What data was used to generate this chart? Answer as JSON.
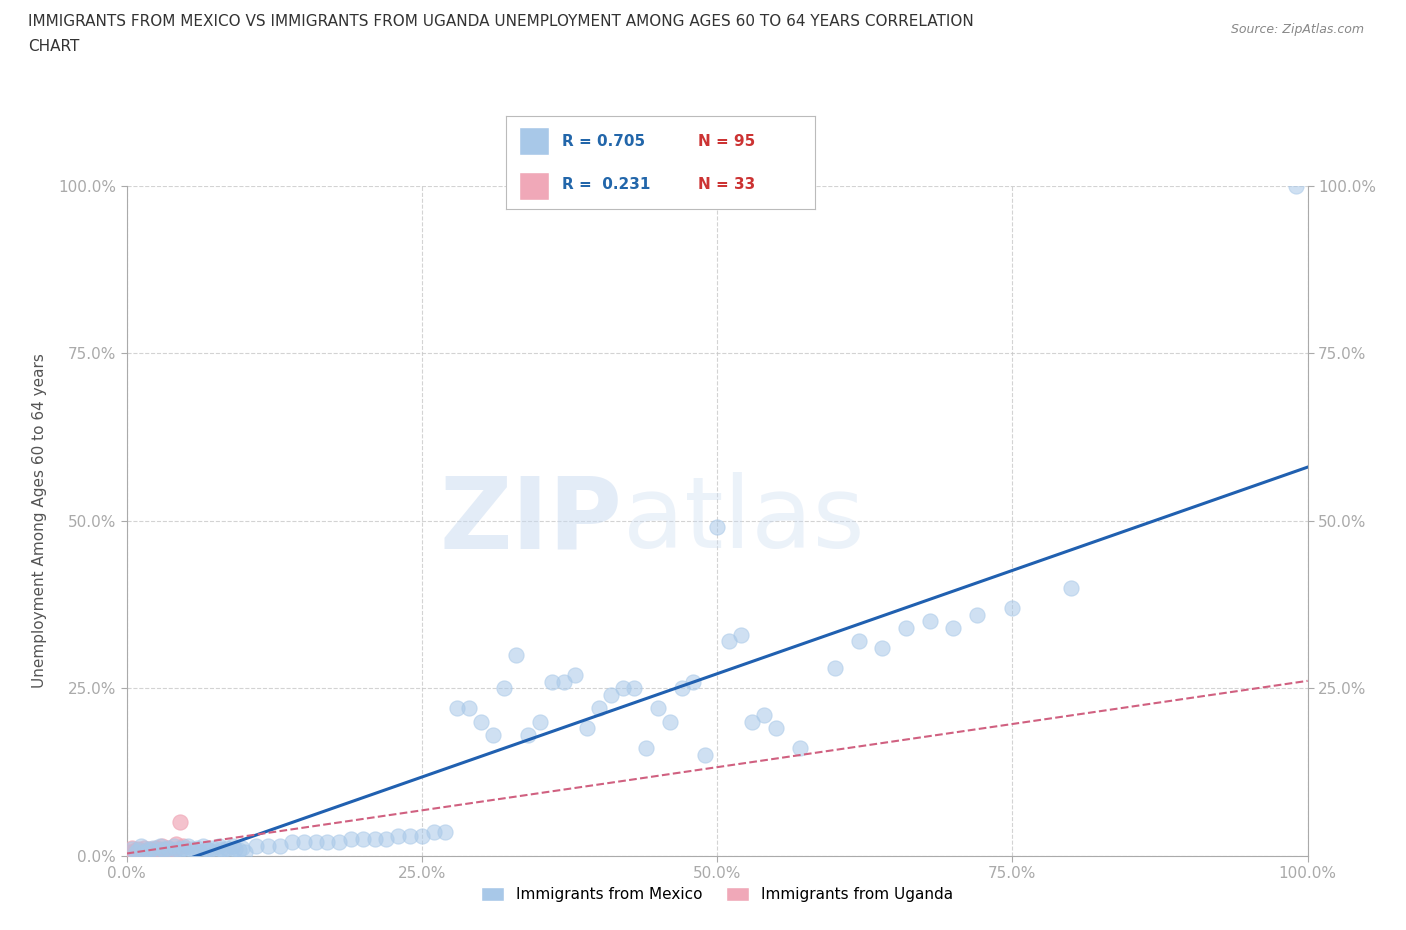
{
  "title_line1": "IMMIGRANTS FROM MEXICO VS IMMIGRANTS FROM UGANDA UNEMPLOYMENT AMONG AGES 60 TO 64 YEARS CORRELATION",
  "title_line2": "CHART",
  "source_text": "Source: ZipAtlas.com",
  "ylabel": "Unemployment Among Ages 60 to 64 years",
  "xlim": [
    0.0,
    1.0
  ],
  "ylim": [
    0.0,
    1.0
  ],
  "xticks": [
    0.0,
    0.25,
    0.5,
    0.75,
    1.0
  ],
  "yticks": [
    0.0,
    0.25,
    0.5,
    0.75,
    1.0
  ],
  "xticklabels": [
    "0.0%",
    "25.0%",
    "50.0%",
    "75.0%",
    "100.0%"
  ],
  "yticklabels": [
    "0.0%",
    "25.0%",
    "50.0%",
    "75.0%",
    "100.0%"
  ],
  "right_yticklabels": [
    "25.0%",
    "50.0%",
    "75.0%",
    "100.0%"
  ],
  "right_yticks": [
    0.25,
    0.5,
    0.75,
    1.0
  ],
  "mexico_R": 0.705,
  "mexico_N": 95,
  "uganda_R": 0.231,
  "uganda_N": 33,
  "mexico_color": "#a8c8e8",
  "uganda_color": "#f0a8b8",
  "mexico_line_color": "#2060b0",
  "uganda_line_color": "#d06080",
  "legend_mexico_label": "Immigrants from Mexico",
  "legend_uganda_label": "Immigrants from Uganda",
  "watermark": "ZIPAtlas",
  "background_color": "#ffffff",
  "grid_color": "#c8c8c8",
  "title_color": "#333333",
  "axis_label_color": "#555555",
  "tick_color": "#4488cc",
  "mexico_x": [
    0.005,
    0.008,
    0.01,
    0.012,
    0.015,
    0.018,
    0.02,
    0.022,
    0.025,
    0.028,
    0.03,
    0.032,
    0.035,
    0.038,
    0.04,
    0.042,
    0.045,
    0.048,
    0.05,
    0.052,
    0.055,
    0.058,
    0.06,
    0.062,
    0.065,
    0.068,
    0.07,
    0.072,
    0.075,
    0.078,
    0.08,
    0.082,
    0.085,
    0.088,
    0.09,
    0.092,
    0.095,
    0.098,
    0.1,
    0.11,
    0.12,
    0.13,
    0.14,
    0.15,
    0.16,
    0.17,
    0.18,
    0.19,
    0.2,
    0.21,
    0.22,
    0.23,
    0.24,
    0.25,
    0.26,
    0.27,
    0.28,
    0.29,
    0.3,
    0.31,
    0.32,
    0.33,
    0.34,
    0.35,
    0.36,
    0.37,
    0.38,
    0.39,
    0.4,
    0.41,
    0.42,
    0.43,
    0.44,
    0.45,
    0.46,
    0.47,
    0.48,
    0.49,
    0.5,
    0.51,
    0.52,
    0.53,
    0.54,
    0.55,
    0.57,
    0.6,
    0.62,
    0.64,
    0.66,
    0.68,
    0.7,
    0.72,
    0.75,
    0.8,
    0.99
  ],
  "mexico_y": [
    0.01,
    0.005,
    0.008,
    0.015,
    0.005,
    0.01,
    0.008,
    0.012,
    0.005,
    0.015,
    0.01,
    0.008,
    0.012,
    0.005,
    0.015,
    0.01,
    0.008,
    0.012,
    0.005,
    0.015,
    0.01,
    0.008,
    0.012,
    0.005,
    0.015,
    0.01,
    0.008,
    0.012,
    0.005,
    0.015,
    0.01,
    0.008,
    0.012,
    0.005,
    0.015,
    0.01,
    0.008,
    0.012,
    0.005,
    0.015,
    0.015,
    0.015,
    0.02,
    0.02,
    0.02,
    0.02,
    0.02,
    0.025,
    0.025,
    0.025,
    0.025,
    0.03,
    0.03,
    0.03,
    0.035,
    0.035,
    0.22,
    0.22,
    0.2,
    0.18,
    0.25,
    0.3,
    0.18,
    0.2,
    0.26,
    0.26,
    0.27,
    0.19,
    0.22,
    0.24,
    0.25,
    0.25,
    0.16,
    0.22,
    0.2,
    0.25,
    0.26,
    0.15,
    0.49,
    0.32,
    0.33,
    0.2,
    0.21,
    0.19,
    0.16,
    0.28,
    0.32,
    0.31,
    0.34,
    0.35,
    0.34,
    0.36,
    0.37,
    0.4,
    1.0
  ],
  "uganda_x": [
    0.002,
    0.005,
    0.005,
    0.007,
    0.008,
    0.01,
    0.01,
    0.012,
    0.012,
    0.015,
    0.015,
    0.018,
    0.018,
    0.02,
    0.02,
    0.022,
    0.022,
    0.025,
    0.025,
    0.028,
    0.028,
    0.03,
    0.03,
    0.032,
    0.032,
    0.035,
    0.035,
    0.038,
    0.038,
    0.04,
    0.042,
    0.045,
    0.048
  ],
  "uganda_y": [
    0.005,
    0.005,
    0.012,
    0.005,
    0.008,
    0.005,
    0.01,
    0.005,
    0.008,
    0.005,
    0.012,
    0.005,
    0.008,
    0.005,
    0.01,
    0.005,
    0.008,
    0.005,
    0.012,
    0.005,
    0.008,
    0.005,
    0.015,
    0.005,
    0.008,
    0.005,
    0.012,
    0.005,
    0.008,
    0.005,
    0.018,
    0.05,
    0.015
  ]
}
